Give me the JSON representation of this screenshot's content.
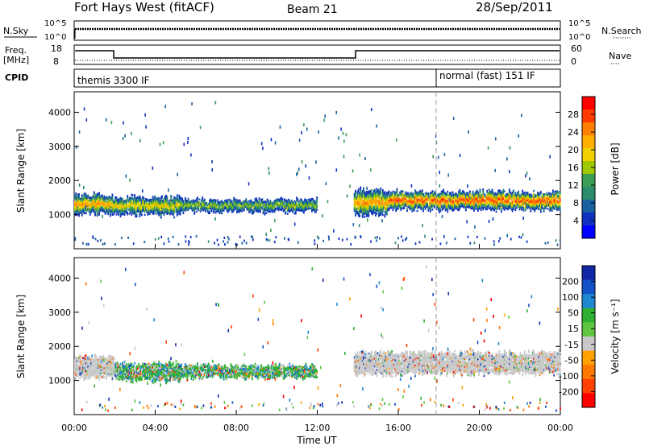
{
  "header": {
    "station": "Fort Hays West (fitACF)",
    "beam": "Beam 21",
    "date": "28/Sep/2011"
  },
  "summary_panels": {
    "nsky_label": "N.Sky",
    "nsearch_label": "N.Search",
    "noise_ticks": [
      "10^5",
      "10^0"
    ],
    "freq_label_line1": "Freq.",
    "freq_label_line2": "[MHz]",
    "freq_ticks": [
      "18",
      "8"
    ],
    "nave_label": "Nave",
    "nave_ticks": [
      "60",
      "0"
    ],
    "cpid_label": "CPID",
    "cpid_1": "themis 3300 IF",
    "cpid_2": "normal (fast) 151 IF"
  },
  "axes": {
    "x_label": "Time UT",
    "x_ticks": [
      "00:00",
      "04:00",
      "08:00",
      "12:00",
      "16:00",
      "20:00",
      "00:00"
    ],
    "y_label": "Slant Range [km]",
    "y_ticks": [
      "1000",
      "2000",
      "3000",
      "4000"
    ]
  },
  "colorbars": {
    "power_label": "Power [dB]",
    "power_ticks": [
      "28",
      "24",
      "20",
      "16",
      "12",
      "8",
      "4"
    ],
    "power_colors": [
      "#ff0000",
      "#ff3a00",
      "#ff7f00",
      "#ffb000",
      "#f0d000",
      "#a0c800",
      "#3d9d55",
      "#2b8c6e",
      "#1860a0",
      "#1030c0",
      "#0000ff"
    ],
    "velocity_label": "Velocity [m s⁻¹]",
    "velocity_ticks": [
      "200",
      "100",
      "50",
      "15",
      "-15",
      "-50",
      "-100",
      "-200"
    ],
    "velocity_colors": [
      "#1028a8",
      "#1450c8",
      "#1e88d0",
      "#30b030",
      "#60c840",
      "#c8c8c8",
      "#ffa000",
      "#ff7800",
      "#ff4000",
      "#ff0000"
    ]
  },
  "chart_data": [
    {
      "type": "heatmap",
      "name": "power",
      "x_range_hours": [
        0,
        24
      ],
      "ylim": [
        0,
        4600
      ],
      "bands": [
        {
          "t0": 0.0,
          "t1": 1.8,
          "center_km": 1300,
          "half_width_km": 280,
          "peak_db": 22
        },
        {
          "t0": 1.8,
          "t1": 5.2,
          "center_km": 1250,
          "half_width_km": 250,
          "peak_db": 18
        },
        {
          "t0": 5.2,
          "t1": 12.0,
          "center_km": 1250,
          "half_width_km": 160,
          "peak_db": 14
        },
        {
          "t0": 13.8,
          "t1": 15.5,
          "center_km": 1350,
          "half_width_km": 350,
          "peak_db": 22
        },
        {
          "t0": 15.5,
          "t1": 24.0,
          "center_km": 1400,
          "half_width_km": 250,
          "peak_db": 26
        }
      ],
      "scatter_echoes_km": [
        2400,
        3000,
        3500,
        4200
      ]
    },
    {
      "type": "heatmap",
      "name": "velocity",
      "x_range_hours": [
        0,
        24
      ],
      "ylim": [
        0,
        4600
      ],
      "bands": [
        {
          "t0": 0.0,
          "t1": 2.0,
          "center_km": 1400,
          "half_width_km": 300,
          "dominant_velocity": 0
        },
        {
          "t0": 2.0,
          "t1": 5.2,
          "center_km": 1250,
          "half_width_km": 250,
          "dominant_velocity": 40
        },
        {
          "t0": 5.2,
          "t1": 12.0,
          "center_km": 1250,
          "half_width_km": 170,
          "dominant_velocity": 60
        },
        {
          "t0": 13.8,
          "t1": 24.0,
          "center_km": 1500,
          "half_width_km": 300,
          "dominant_velocity": 0
        }
      ]
    }
  ]
}
